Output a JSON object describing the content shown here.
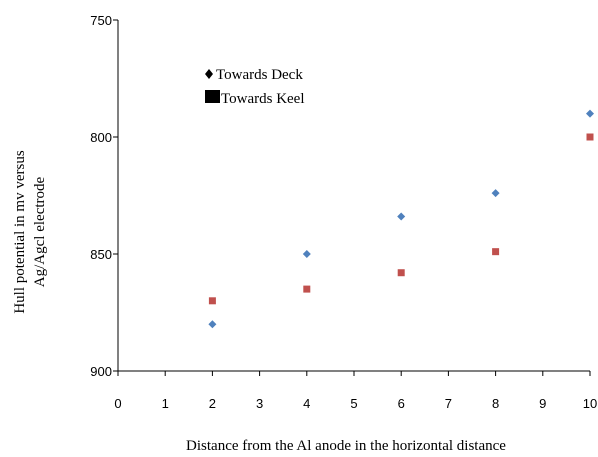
{
  "chart_data": {
    "type": "scatter",
    "title": "",
    "xlabel": "Distance from the Al anode in the horizontal distance",
    "ylabel_lines": [
      "Hull potential in mv versus",
      "Ag/Agcl electrode"
    ],
    "xlim": [
      0,
      10
    ],
    "ylim": [
      750,
      900
    ],
    "y_inverted": true,
    "x_ticks": [
      "0",
      "1",
      "2",
      "3",
      "4",
      "5",
      "6",
      "7",
      "8",
      "9",
      "10"
    ],
    "y_ticks": [
      "750",
      "800",
      "850",
      "900"
    ],
    "grid": false,
    "legend_position": "top-left",
    "series": [
      {
        "name": "Towards Deck",
        "marker": "diamond",
        "legend_marker": "black-diamond",
        "color": "#4f81bd",
        "x": [
          2,
          4,
          6,
          8,
          10
        ],
        "y": [
          880,
          850,
          834,
          824,
          790
        ]
      },
      {
        "name": "Towards Keel",
        "marker": "square",
        "legend_marker": "black-square",
        "color": "#c0504d",
        "x": [
          2,
          4,
          6,
          8,
          10
        ],
        "y": [
          870,
          865,
          858,
          849,
          800
        ]
      }
    ]
  }
}
